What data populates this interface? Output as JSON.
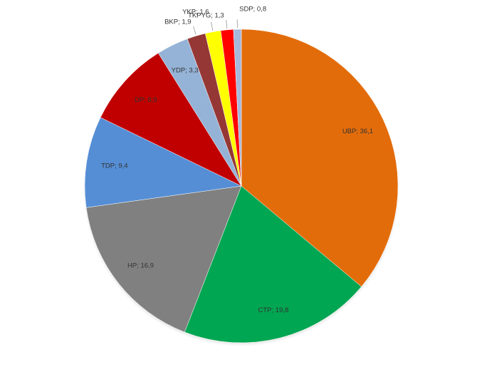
{
  "chart_data": {
    "type": "pie",
    "categories": [
      "UBP",
      "CTP",
      "HP",
      "TDP",
      "DP",
      "YDP",
      "BKP",
      "YKP",
      "TKPYG",
      "SDP"
    ],
    "values": [
      36.1,
      19.8,
      16.9,
      9.4,
      8.9,
      3.3,
      1.9,
      1.6,
      1.3,
      0.8
    ],
    "value_labels": [
      "UBP; 36,1",
      "CTP; 19,8",
      "HP; 16,9",
      "TDP; 9,4",
      "DP; 8,9",
      "YDP; 3,3",
      "BKP; 1,9",
      "YKP; 1,6",
      "TKPYG; 1,3",
      "SDP; 0,8"
    ],
    "colors": [
      "#e36c0a",
      "#00a651",
      "#808080",
      "#558ed5",
      "#c00000",
      "#95b3d7",
      "#953735",
      "#ffff00",
      "#ff0000",
      "#a6b9dc"
    ]
  }
}
